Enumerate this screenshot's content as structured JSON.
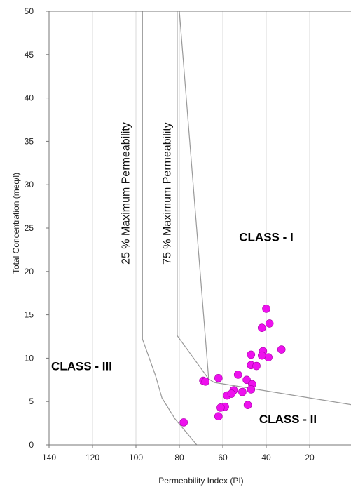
{
  "chart_data": {
    "type": "scatter",
    "title": "",
    "xlabel": "Permeability Index (PI)",
    "ylabel": "Total Concentration (meq/l)",
    "xlim": [
      140,
      0
    ],
    "ylim": [
      0,
      50
    ],
    "x_reversed": true,
    "x_ticks": [
      140,
      120,
      100,
      80,
      60,
      40,
      20,
      0
    ],
    "y_ticks": [
      0,
      5,
      10,
      15,
      20,
      25,
      30,
      35,
      40,
      45,
      50
    ],
    "grid": "vertical",
    "marker_color": "#ee11ee",
    "points": [
      [
        40,
        15.7
      ],
      [
        38.5,
        14.0
      ],
      [
        42,
        13.5
      ],
      [
        33,
        11.0
      ],
      [
        41.5,
        10.8
      ],
      [
        47,
        10.4
      ],
      [
        39,
        10.1
      ],
      [
        42,
        10.3
      ],
      [
        47,
        9.2
      ],
      [
        44.5,
        9.1
      ],
      [
        53,
        8.1
      ],
      [
        69,
        7.4
      ],
      [
        68,
        7.3
      ],
      [
        62,
        7.7
      ],
      [
        49,
        7.5
      ],
      [
        46.5,
        7.0
      ],
      [
        47,
        6.4
      ],
      [
        55,
        6.3
      ],
      [
        51,
        6.1
      ],
      [
        58,
        5.7
      ],
      [
        56,
        5.9
      ],
      [
        59,
        4.4
      ],
      [
        61,
        4.3
      ],
      [
        48.5,
        4.6
      ],
      [
        62,
        3.3
      ],
      [
        78,
        2.6
      ]
    ],
    "boundaries": [
      {
        "name": "25 % Maximum Permeability",
        "points": [
          [
            97,
            50
          ],
          [
            97,
            12.2
          ],
          [
            91,
            8.0
          ],
          [
            88,
            5.4
          ],
          [
            82,
            3.0
          ],
          [
            72,
            0
          ]
        ]
      },
      {
        "name": "75 % Maximum Permeability",
        "points": [
          [
            81,
            50
          ],
          [
            81,
            12.6
          ],
          [
            66.5,
            7.6
          ],
          [
            64,
            7.2
          ],
          [
            0,
            4.6
          ]
        ]
      },
      {
        "name": "",
        "points": [
          [
            66.5,
            7.6
          ],
          [
            80,
            50
          ]
        ]
      }
    ],
    "regions": [
      {
        "label": "CLASS - I",
        "x": 40,
        "y": 23.5
      },
      {
        "label": "CLASS - II",
        "x": 30,
        "y": 2.5
      },
      {
        "label": "CLASS - III",
        "x": 125,
        "y": 8.6
      }
    ],
    "curve_labels": [
      {
        "label": "25 % Maximum Permeability",
        "x": 103,
        "y": 29
      },
      {
        "label": "75 % Maximum Permeability",
        "x": 84,
        "y": 29
      }
    ]
  }
}
